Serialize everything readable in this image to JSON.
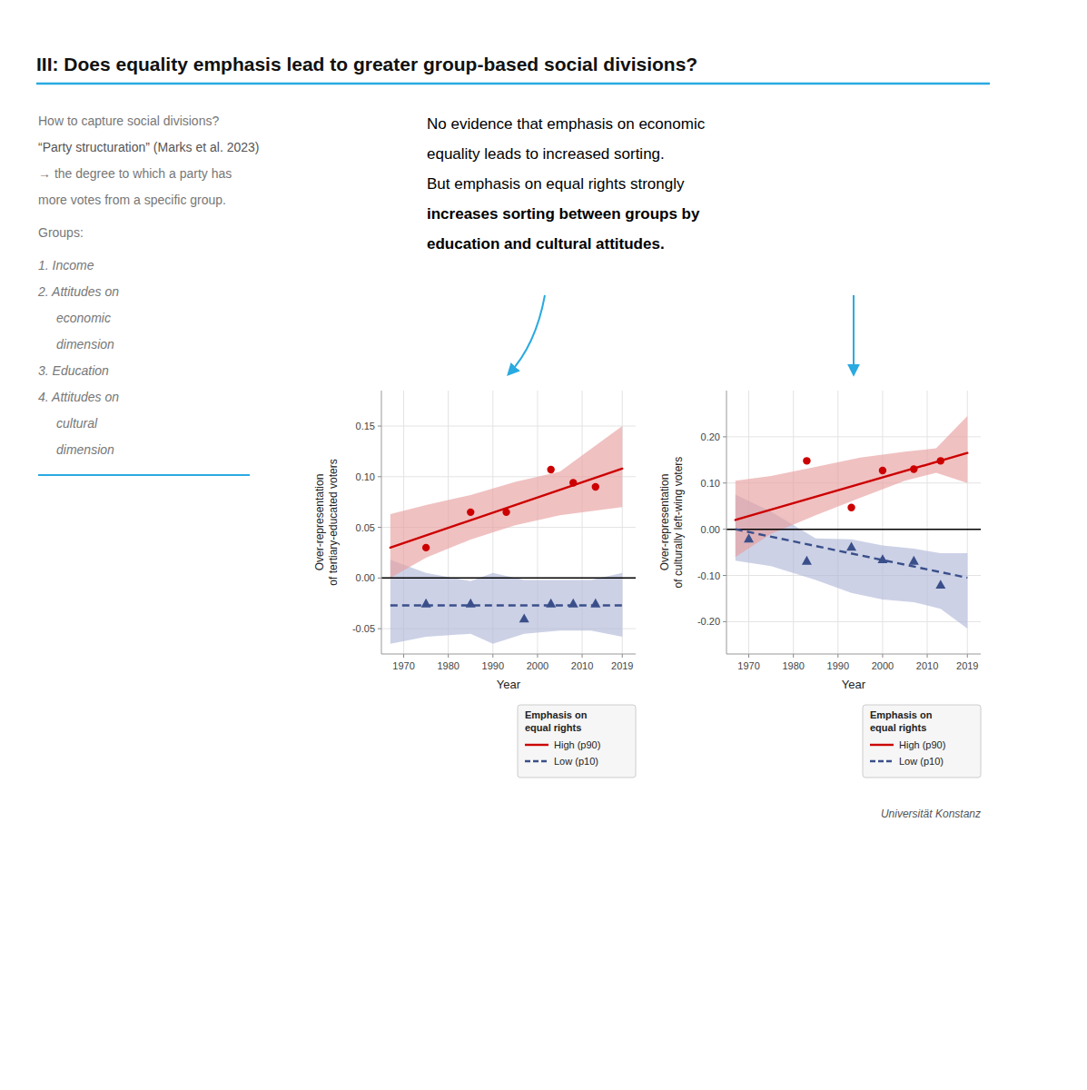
{
  "title": "III: Does equality emphasis lead to greater group-based social divisions?",
  "color": "#29aae1",
  "left_text": [
    "How to capture social divisions?",
    "“Party structuration” (Marks et al. 2023)",
    "→ the degree to which a party has",
    "more votes from a specific group.",
    "Groups:",
    "1. Income",
    "2. Attitudes on",
    "economic",
    "dimension",
    "3. Education",
    "4. Attitudes on",
    "cultural",
    "dimension"
  ],
  "right_text": [
    "No evidence that emphasis on economic",
    "equality leads to increased sorting.",
    "But emphasis on equal rights strongly",
    "increases sorting between groups by",
    "education and cultural attitudes."
  ],
  "footer": "Universität Konstanz",
  "chart_data": [
    {
      "type": "line",
      "ylabel": "Over-representation\nof tertiary-educated voters",
      "xlabel": "Year",
      "xlim": [
        1965,
        2022
      ],
      "ylim": [
        -0.075,
        0.185
      ],
      "yticks": [
        -0.05,
        {
          "value": 0.0,
          "label": "0.00"
        },
        0.05,
        {
          "value": 0.1,
          "label": "0.10"
        },
        0.15
      ],
      "xticks": [
        1970,
        1980,
        1990,
        2000,
        2010,
        2019
      ],
      "grid": true,
      "legend": "lower right",
      "legend_title": "Emphasis on\nequal rights",
      "hline": 0.0,
      "series": [
        {
          "type": "area",
          "color": "#b0b8d8",
          "x": [
            1967,
            1975,
            1985,
            1990,
            1997,
            2005,
            2012,
            2019
          ],
          "upper": [
            0.018,
            0.005,
            -0.003,
            0.005,
            -0.002,
            -0.002,
            -0.002,
            0.005
          ],
          "lower": [
            -0.065,
            -0.058,
            -0.055,
            -0.065,
            -0.055,
            -0.052,
            -0.052,
            -0.058
          ]
        },
        {
          "type": "area",
          "color": "#e8a0a0",
          "x": [
            1967,
            1975,
            1985,
            1995,
            2005,
            2019
          ],
          "upper": [
            0.063,
            0.072,
            0.082,
            0.095,
            0.105,
            0.15
          ],
          "lower": [
            0.0,
            0.02,
            0.038,
            0.052,
            0.062,
            0.07
          ]
        },
        {
          "name": "High (p90)",
          "type": "line",
          "color": "#cc0000",
          "line_style": "solid",
          "x": [
            1967,
            2019
          ],
          "values": [
            0.03,
            0.108
          ]
        },
        {
          "name": "Low (p10)",
          "type": "line",
          "color": "#3a4f8a",
          "line_style": "dashed",
          "x": [
            1967,
            2019
          ],
          "values": [
            -0.027,
            -0.027
          ]
        },
        {
          "type": "scatter",
          "color": "#cc0000",
          "marker": "circle",
          "x": [
            1975,
            1985,
            1993,
            2003,
            2008,
            2013
          ],
          "values": [
            0.03,
            0.065,
            0.065,
            0.107,
            0.094,
            0.09
          ]
        },
        {
          "type": "scatter",
          "color": "#3a4f8a",
          "marker": "triangle",
          "x": [
            1975,
            1985,
            1997,
            2003,
            2008,
            2013
          ],
          "values": [
            -0.025,
            -0.025,
            -0.04,
            -0.025,
            -0.025,
            -0.025
          ]
        }
      ]
    },
    {
      "type": "line",
      "ylabel": "Over-representation\nof culturally left-wing voters",
      "xlabel": "Year",
      "xlim": [
        1965,
        2022
      ],
      "ylim": [
        -0.27,
        0.3
      ],
      "yticks": [
        {
          "value": -0.2,
          "label": "-0.20"
        },
        {
          "value": -0.1,
          "label": "-0.10"
        },
        {
          "value": 0.0,
          "label": "0.00"
        },
        {
          "value": 0.1,
          "label": "0.10"
        },
        {
          "value": 0.2,
          "label": "0.20"
        }
      ],
      "xticks": [
        1970,
        1980,
        1990,
        2000,
        2010,
        2019
      ],
      "grid": true,
      "legend": "lower right",
      "legend_title": "Emphasis on\nequal rights",
      "hline": 0.0,
      "series": [
        {
          "type": "area",
          "color": "#b0b8d8",
          "x": [
            1967,
            1975,
            1985,
            1993,
            2000,
            2007,
            2013,
            2019
          ],
          "upper": [
            0.075,
            0.038,
            -0.02,
            -0.022,
            -0.035,
            -0.042,
            -0.052,
            -0.052
          ],
          "lower": [
            -0.068,
            -0.08,
            -0.11,
            -0.138,
            -0.152,
            -0.158,
            -0.172,
            -0.215
          ]
        },
        {
          "type": "area",
          "color": "#e8a0a0",
          "x": [
            1967,
            1975,
            1985,
            1995,
            2005,
            2012,
            2019
          ],
          "upper": [
            0.105,
            0.115,
            0.135,
            0.155,
            0.168,
            0.175,
            0.245
          ],
          "lower": [
            -0.06,
            -0.01,
            0.03,
            0.068,
            0.105,
            0.122,
            0.1
          ]
        },
        {
          "name": "High (p90)",
          "type": "line",
          "color": "#cc0000",
          "line_style": "solid",
          "x": [
            1967,
            2019
          ],
          "values": [
            0.02,
            0.165
          ]
        },
        {
          "name": "Low (p10)",
          "type": "line",
          "color": "#3a4f8a",
          "line_style": "dashed",
          "x": [
            1967,
            2019
          ],
          "values": [
            0.0,
            -0.105
          ]
        },
        {
          "type": "scatter",
          "color": "#cc0000",
          "marker": "circle",
          "x": [
            1983,
            1993,
            2000,
            2007,
            2013
          ],
          "values": [
            0.148,
            0.047,
            0.127,
            0.13,
            0.148
          ]
        },
        {
          "type": "scatter",
          "color": "#3a4f8a",
          "marker": "triangle",
          "x": [
            1970,
            1983,
            1993,
            2000,
            2007,
            2013
          ],
          "values": [
            -0.02,
            -0.068,
            -0.038,
            -0.065,
            -0.068,
            -0.12
          ]
        }
      ]
    }
  ]
}
